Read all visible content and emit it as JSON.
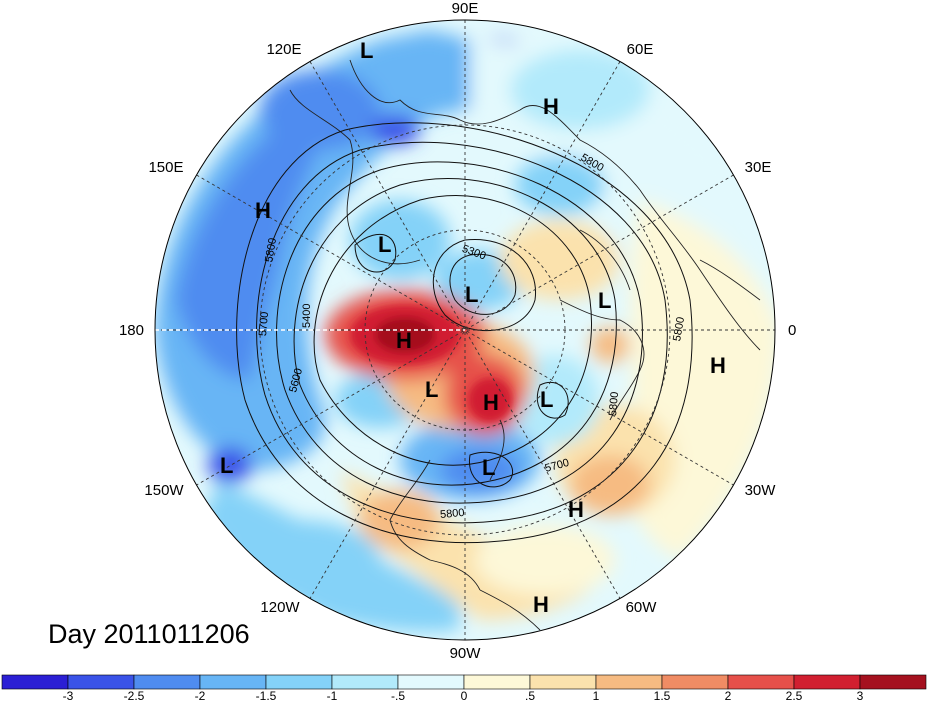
{
  "title": "Day 2011011206",
  "longitude_labels": [
    "90E",
    "60E",
    "30E",
    "0",
    "30W",
    "60W",
    "90W",
    "120W",
    "150W",
    "180",
    "150E",
    "120E"
  ],
  "pressure_systems": [
    {
      "type": "L",
      "label": "L"
    },
    {
      "type": "H",
      "label": "H"
    },
    {
      "type": "H",
      "label": "H"
    },
    {
      "type": "L",
      "label": "L"
    },
    {
      "type": "L",
      "label": "L"
    },
    {
      "type": "L",
      "label": "L"
    },
    {
      "type": "H",
      "label": "H"
    },
    {
      "type": "H",
      "label": "H"
    },
    {
      "type": "L",
      "label": "L"
    },
    {
      "type": "H",
      "label": "H"
    },
    {
      "type": "L",
      "label": "L"
    },
    {
      "type": "L",
      "label": "L"
    },
    {
      "type": "L",
      "label": "L"
    },
    {
      "type": "H",
      "label": "H"
    },
    {
      "type": "H",
      "label": "H"
    }
  ],
  "contour_labels": [
    "5300",
    "5400",
    "5600",
    "5700",
    "5700",
    "5800",
    "5800",
    "5800",
    "5800",
    "5800"
  ],
  "colorbar": {
    "ticks": [
      "-3",
      "-2.5",
      "-2",
      "-1.5",
      "-1",
      "-.5",
      "0",
      ".5",
      "1",
      "1.5",
      "2",
      "2.5",
      "3"
    ],
    "colors": [
      "#2b1fd4",
      "#3a53e8",
      "#4f8cf0",
      "#67b5f5",
      "#84d2f8",
      "#b2eafb",
      "#e3f9fd",
      "#fdf8d8",
      "#fbe2ad",
      "#f6bb82",
      "#f08c64",
      "#e6504a",
      "#d11f30",
      "#a5111f"
    ]
  }
}
